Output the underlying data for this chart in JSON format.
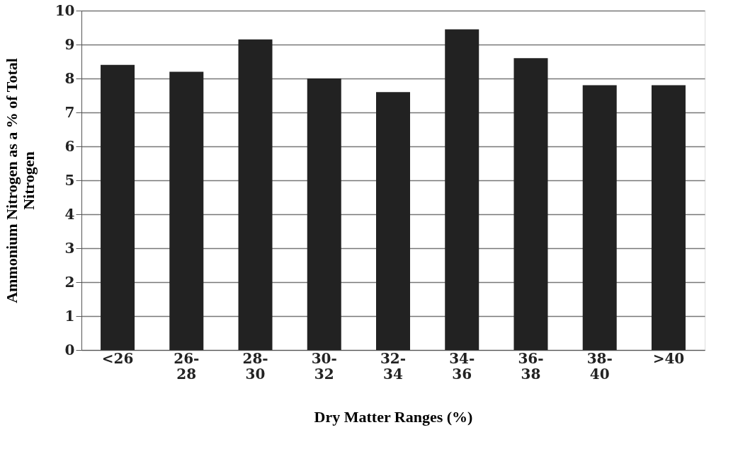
{
  "chart_data": {
    "type": "bar",
    "xlabel": "Dry Matter Ranges (%)",
    "ylabel": "Ammonium Nitrogen as a % of Total Nitrogen",
    "categories": [
      "<26",
      "26-28",
      "28-30",
      "30-32",
      "32-34",
      "34-36",
      "36-38",
      "38-40",
      ">40"
    ],
    "values": [
      8.4,
      8.2,
      9.15,
      8.0,
      7.6,
      9.45,
      8.6,
      7.8,
      7.8
    ],
    "color": "#222222",
    "ylim": [
      0,
      10
    ],
    "yticks": [
      0,
      1,
      2,
      3,
      4,
      5,
      6,
      7,
      8,
      9,
      10
    ],
    "grid": "y"
  }
}
